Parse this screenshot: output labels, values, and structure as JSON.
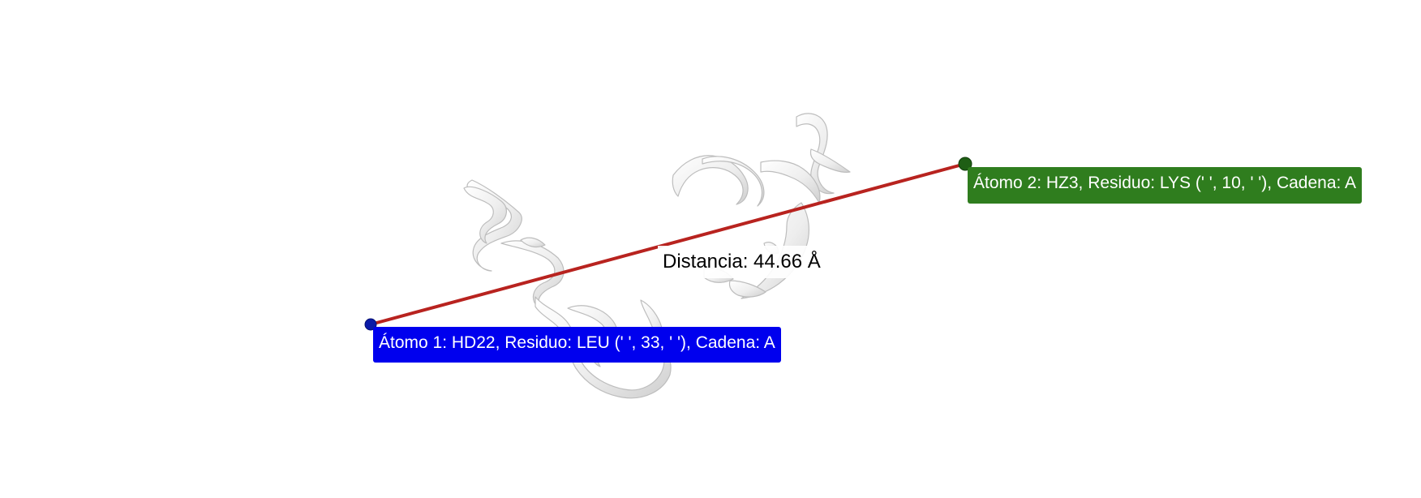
{
  "viewer": {
    "background": "#ffffff",
    "ribbon_color": "#f2f2f2",
    "ribbon_outline": "#c8c8c8"
  },
  "measurement": {
    "line_color": "#b8231f",
    "distance_label": "Distancia: 44.66 Å",
    "atom1": {
      "label": "Átomo 1: HD22, Residuo: LEU (' ', 33, ' '), Cadena: A",
      "color": "#0000ee",
      "marker_color": "#0a1aa8"
    },
    "atom2": {
      "label": "Átomo 2: HZ3, Residuo: LYS (' ', 10, ' '), Cadena: A",
      "color": "#2f7d1e",
      "marker_color": "#1e5e14"
    }
  }
}
